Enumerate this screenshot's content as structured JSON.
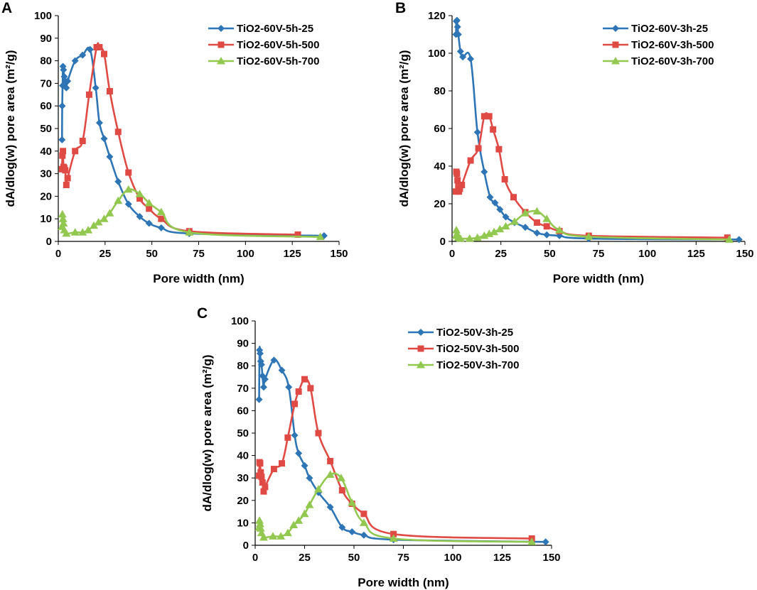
{
  "chart_data": [
    {
      "panel": "A",
      "type": "line",
      "xlabel": "Pore width (nm)",
      "ylabel": "dA/dlog(w) pore area (m²/g)",
      "xlim": [
        0,
        150
      ],
      "ylim": [
        0,
        100
      ],
      "xticks": [
        0,
        25,
        50,
        75,
        100,
        125,
        150
      ],
      "yticks": [
        0,
        10,
        20,
        30,
        40,
        50,
        60,
        70,
        80,
        90,
        100
      ],
      "legend_position": "top-right",
      "series": [
        {
          "name": "TiO2-60V-5h-25",
          "color": "#2E75B6",
          "marker": "diamond",
          "x": [
            2.0,
            2.1,
            2.3,
            2.5,
            2.8,
            3.2,
            3.7,
            4.3,
            5.0,
            9.0,
            13.0,
            17.0,
            20.0,
            22.0,
            24.5,
            27.5,
            32.0,
            37.5,
            43.5,
            48.5,
            55.0,
            70.0,
            142.0
          ],
          "y": [
            45,
            60,
            69,
            77.5,
            76,
            73,
            71,
            68,
            71,
            80,
            82.5,
            85,
            68,
            52.5,
            45.5,
            37.5,
            26.5,
            16.5,
            11,
            8,
            6,
            3.5,
            2.5
          ]
        },
        {
          "name": "TiO2-60V-5h-500",
          "color": "#E04A45",
          "marker": "square",
          "x": [
            2.0,
            2.2,
            2.5,
            2.8,
            3.2,
            3.7,
            4.3,
            5.0,
            9.0,
            13.0,
            16.5,
            20.5,
            22.0,
            24.5,
            27.5,
            32.0,
            37.5,
            43.5,
            48.5,
            55.0,
            70.0,
            128.0
          ],
          "y": [
            32,
            38,
            40,
            33,
            32.5,
            31.5,
            25,
            28,
            40,
            44.5,
            65,
            86,
            86,
            83,
            66.5,
            48.5,
            30.5,
            19,
            14.5,
            10,
            4.5,
            3
          ]
        },
        {
          "name": "TiO2-60V-5h-700",
          "color": "#92C84F",
          "marker": "triangle",
          "x": [
            2.0,
            2.2,
            2.5,
            2.8,
            3.2,
            4.3,
            9.0,
            13.0,
            16.0,
            19.0,
            21.5,
            24.5,
            27.5,
            32.0,
            37.5,
            43.5,
            48.5,
            55.0,
            70.0,
            140.0
          ],
          "y": [
            6.5,
            12,
            10,
            8,
            5,
            3.5,
            4,
            4,
            5,
            7,
            8.5,
            10,
            12.5,
            18,
            23,
            21,
            17,
            13,
            4,
            2
          ]
        }
      ]
    },
    {
      "panel": "B",
      "type": "line",
      "xlabel": "Pore width (nm)",
      "ylabel": "dA/dlog(w) pore area (m²/g)",
      "xlim": [
        0,
        150
      ],
      "ylim": [
        0,
        120
      ],
      "xticks": [
        0,
        25,
        50,
        75,
        100,
        125,
        150
      ],
      "yticks": [
        0,
        20,
        40,
        60,
        80,
        100,
        120
      ],
      "legend_position": "top-right",
      "series": [
        {
          "name": "TiO2-60V-3h-25",
          "color": "#2E75B6",
          "marker": "diamond",
          "x": [
            2.0,
            2.2,
            2.5,
            2.8,
            3.2,
            4.3,
            5.5,
            9.5,
            13.0,
            16.5,
            19.5,
            22.0,
            24.5,
            27.5,
            32.0,
            37.5,
            43.5,
            48.5,
            55.0,
            70.0,
            147.0
          ],
          "y": [
            110,
            117,
            117.5,
            114,
            110,
            101,
            98,
            97,
            58,
            37,
            23.5,
            20.5,
            17,
            13,
            10,
            7.5,
            4.5,
            3.5,
            3,
            1.5,
            1
          ]
        },
        {
          "name": "TiO2-60V-3h-500",
          "color": "#E04A45",
          "marker": "square",
          "x": [
            2.0,
            2.2,
            2.5,
            2.8,
            3.5,
            4.0,
            5.0,
            9.5,
            13.5,
            16.5,
            19.0,
            21.0,
            24.0,
            27.0,
            31.5,
            37.5,
            43.5,
            48.5,
            55.0,
            70.0,
            141.0
          ],
          "y": [
            26.5,
            37,
            36,
            32.5,
            26.5,
            28,
            30,
            43,
            49.5,
            66.5,
            66.5,
            59.5,
            49,
            33,
            23.5,
            15.5,
            10,
            8,
            5.5,
            3,
            2
          ]
        },
        {
          "name": "TiO2-60V-3h-700",
          "color": "#92C84F",
          "marker": "triangle",
          "x": [
            2.0,
            2.2,
            2.5,
            2.8,
            3.2,
            4.3,
            9.0,
            13.0,
            16.5,
            19.0,
            21.5,
            24.5,
            27.5,
            32.0,
            37.5,
            43.5,
            48.5,
            55.0,
            70.0,
            142.0
          ],
          "y": [
            3,
            6,
            4,
            3,
            2,
            1.5,
            1.5,
            2,
            3,
            4,
            5,
            6.5,
            8,
            10.5,
            15,
            16,
            12,
            6,
            2.5,
            1
          ]
        }
      ]
    },
    {
      "panel": "C",
      "type": "line",
      "xlabel": "Pore width (nm)",
      "ylabel": "dA/dlog(w) pore area (m²/g)",
      "xlim": [
        0,
        150
      ],
      "ylim": [
        0,
        100
      ],
      "xticks": [
        0,
        25,
        50,
        75,
        100,
        125,
        150
      ],
      "yticks": [
        0,
        10,
        20,
        30,
        40,
        50,
        60,
        70,
        80,
        90,
        100
      ],
      "legend_position": "top-right",
      "series": [
        {
          "name": "TiO2-50V-3h-25",
          "color": "#2E75B6",
          "marker": "diamond",
          "x": [
            2.0,
            2.2,
            2.5,
            2.8,
            3.2,
            3.7,
            4.3,
            5.0,
            9.5,
            13.5,
            17.0,
            20.0,
            22.0,
            25.0,
            27.5,
            32.0,
            38.0,
            44.0,
            49.0,
            55.0,
            70.0,
            147.0
          ],
          "y": [
            65,
            87,
            85.5,
            82,
            80.5,
            75.5,
            70.5,
            74,
            82.5,
            78,
            70.5,
            49,
            41,
            35.5,
            30,
            23.5,
            17,
            8,
            6,
            4.5,
            2.5,
            1.5
          ]
        },
        {
          "name": "TiO2-50V-3h-500",
          "color": "#E04A45",
          "marker": "square",
          "x": [
            2.0,
            2.2,
            2.5,
            2.8,
            3.2,
            3.7,
            4.3,
            5.0,
            9.5,
            13.5,
            16.5,
            20.0,
            22.0,
            25.0,
            28.0,
            32.0,
            38.0,
            44.0,
            49.0,
            55.0,
            70.0,
            140.0
          ],
          "y": [
            31,
            37,
            36.5,
            32.5,
            30.5,
            28,
            24,
            26,
            34,
            36.5,
            48,
            63,
            68.5,
            74,
            70,
            50,
            37.5,
            24.5,
            18.5,
            14,
            5,
            3
          ]
        },
        {
          "name": "TiO2-50V-3h-700",
          "color": "#92C84F",
          "marker": "triangle",
          "x": [
            2.0,
            2.2,
            2.5,
            2.8,
            3.2,
            4.3,
            9.0,
            13.0,
            16.5,
            19.5,
            22.0,
            25.0,
            27.5,
            32.0,
            38.0,
            43.5,
            49.0,
            55.0,
            70.0,
            140.0
          ],
          "y": [
            8,
            11,
            9.5,
            7.5,
            5.5,
            3.5,
            4,
            4,
            5.5,
            9,
            11,
            14,
            18,
            25,
            31.5,
            30,
            19,
            10,
            3,
            1.5
          ]
        }
      ]
    }
  ]
}
